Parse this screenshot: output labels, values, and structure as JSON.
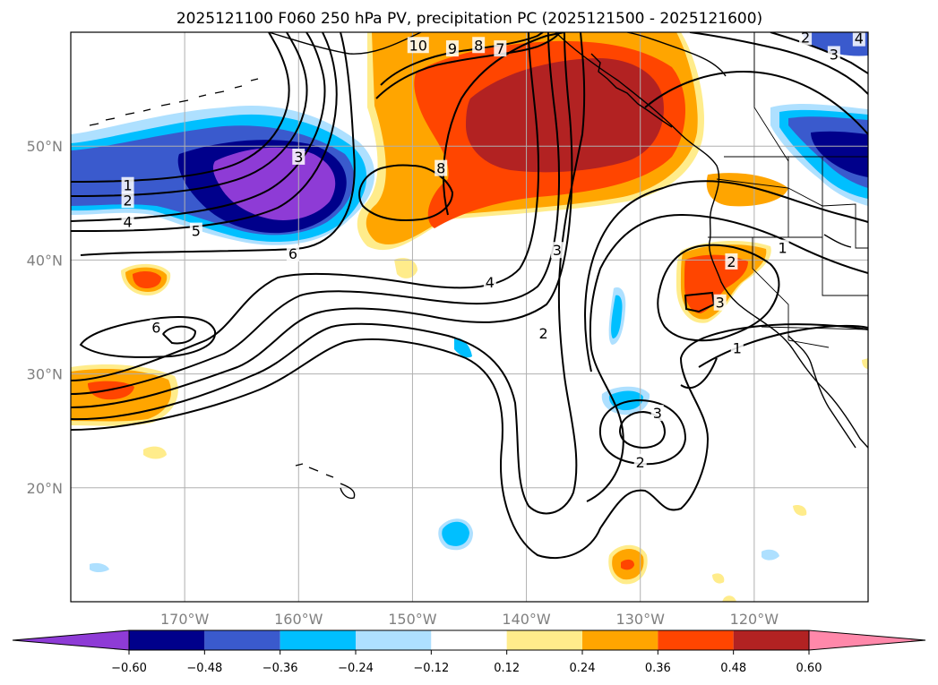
{
  "chart_data": {
    "type": "contour-map",
    "title": "2025121100 F060 250 hPa PV, precipitation PC (2025121500 - 2025121600)",
    "x_axis": {
      "labels": [
        "170°W",
        "160°W",
        "150°W",
        "140°W",
        "130°W",
        "120°W"
      ],
      "values": [
        -170,
        -160,
        -150,
        -140,
        -130,
        -120
      ],
      "range": [
        -180,
        -110
      ]
    },
    "y_axis": {
      "labels": [
        "50°N",
        "40°N",
        "30°N",
        "20°N"
      ],
      "values": [
        50,
        40,
        30,
        20
      ],
      "range": [
        10,
        60
      ]
    },
    "grid": true,
    "colorbar": {
      "orientation": "horizontal",
      "location": "bottom",
      "tick_labels": [
        "−0.60",
        "−0.48",
        "−0.36",
        "−0.24",
        "−0.12",
        "0.12",
        "0.24",
        "0.36",
        "0.48",
        "0.60"
      ],
      "levels": [
        -0.6,
        -0.48,
        -0.36,
        -0.24,
        -0.12,
        0.12,
        0.24,
        0.36,
        0.48,
        0.6
      ],
      "colors": [
        "#8e3bd6",
        "#00008b",
        "#3a5acd",
        "#00bfff",
        "#aee0ff",
        "#ffffff",
        "#ffec8b",
        "#ffa500",
        "#ff4500",
        "#b22222",
        "#ff88aa"
      ]
    },
    "pv_contour_labels": [
      {
        "text": "1",
        "lon": -175,
        "lat": 46.5
      },
      {
        "text": "2",
        "lon": -175,
        "lat": 45.2
      },
      {
        "text": "4",
        "lon": -175,
        "lat": 43.3
      },
      {
        "text": "5",
        "lon": -169,
        "lat": 42.5
      },
      {
        "text": "6",
        "lon": -160.5,
        "lat": 40.5
      },
      {
        "text": "4",
        "lon": -143.2,
        "lat": 38.0
      },
      {
        "text": "3",
        "lon": -137.3,
        "lat": 40.8
      },
      {
        "text": "2",
        "lon": -138.5,
        "lat": 33.5
      },
      {
        "text": "3",
        "lon": -160,
        "lat": 49
      },
      {
        "text": "6",
        "lon": -172.5,
        "lat": 34.0
      },
      {
        "text": "8",
        "lon": -147.5,
        "lat": 48.0
      },
      {
        "text": "10",
        "lon": -149.5,
        "lat": 58.8
      },
      {
        "text": "9",
        "lon": -146.5,
        "lat": 58.5
      },
      {
        "text": "8",
        "lon": -144.2,
        "lat": 58.8
      },
      {
        "text": "7",
        "lon": -142.3,
        "lat": 58.5
      },
      {
        "text": "2",
        "lon": -122,
        "lat": 39.8
      },
      {
        "text": "3",
        "lon": -123,
        "lat": 36.2
      },
      {
        "text": "1",
        "lon": -117.5,
        "lat": 41.0
      },
      {
        "text": "1",
        "lon": -121.5,
        "lat": 32.2
      },
      {
        "text": "2",
        "lon": -130,
        "lat": 22.2
      },
      {
        "text": "3",
        "lon": -128.5,
        "lat": 26.5
      },
      {
        "text": "2",
        "lon": -115.5,
        "lat": 59.5
      },
      {
        "text": "3",
        "lon": -113,
        "lat": 58.0
      },
      {
        "text": "4",
        "lon": -110.8,
        "lat": 59.4
      }
    ]
  }
}
